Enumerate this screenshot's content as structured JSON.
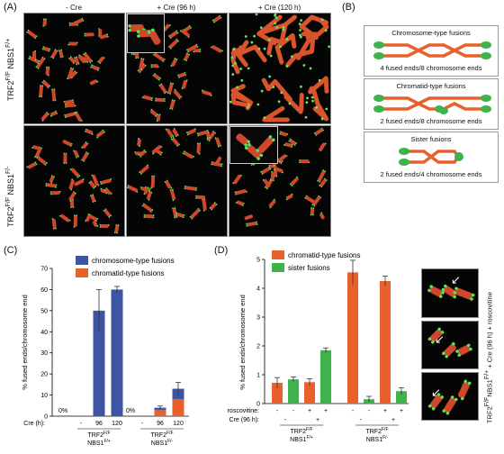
{
  "panel_labels": {
    "A": "(A)",
    "B": "(B)",
    "C": "(C)",
    "D": "(D)"
  },
  "panel_a": {
    "columns": [
      "- Cre",
      "+ Cre (96 h)",
      "+ Cre (120  h)"
    ],
    "rows": [
      "TRF2F/F NBS1F/+",
      "TRF2F/F NBS1F/-"
    ]
  },
  "panel_b": {
    "boxes": [
      {
        "title": "Chromosome-type fusions",
        "caption": "4 fused ends/8 chromosome ends"
      },
      {
        "title": "Chromatid-type fusions",
        "caption": "2 fused ends/8 chromosome ends"
      },
      {
        "title": "Sister fusions",
        "caption": "2 fused ends/4 chromosome ends"
      }
    ]
  },
  "panel_c": {
    "ylabel": "% fused ends/chromosome end",
    "yticks": [
      "0",
      "10",
      "20",
      "30",
      "40",
      "50",
      "60",
      "70"
    ],
    "cre_label": "Cre (h):",
    "cre_values": [
      "-",
      "96",
      "120",
      "-",
      "96",
      "120"
    ],
    "zero_labels": [
      "0%",
      "0%"
    ],
    "groups": [
      "TRF2F/F NBS1F/+",
      "TRF2F/F NBS1F/-"
    ],
    "group_lines": [
      [
        "TRF2",
        "F/F"
      ],
      [
        "NBS1",
        "F/+"
      ],
      [
        "TRF2",
        "F/F"
      ],
      [
        "NBS1",
        "F/-"
      ]
    ],
    "legend": [
      "chromosome-type fusions",
      "chromatid-type fusions"
    ],
    "colors": {
      "chromosome": "#3d55a3",
      "chromatid": "#e8612c"
    }
  },
  "panel_d": {
    "ylabel": "% fused ends/chromosome end",
    "yticks": [
      "0",
      "1",
      "2",
      "3",
      "4",
      "5"
    ],
    "roscovitine_label": "roscovitine:",
    "roscovitine_values": [
      "-",
      "-",
      "+",
      "+",
      "-",
      "-",
      "+",
      "+"
    ],
    "cre_label": "Cre (96 h):",
    "cre_values": [
      "-",
      "+",
      "-",
      "+"
    ],
    "group_lines": [
      [
        "TRF2",
        "F/F"
      ],
      [
        "NBS1",
        "F/+"
      ],
      [
        "TRF2",
        "F/F"
      ],
      [
        "NBS1",
        "F/-"
      ]
    ],
    "legend": [
      "chromatid-type fusions",
      "sister fusions"
    ],
    "colors": {
      "chromatid": "#e8612c",
      "sister": "#3fb34a"
    },
    "side_label": "TRF2F/FNBS1F/+ + Cre (96 h) + roscovitine"
  },
  "chart_data": [
    {
      "type": "bar",
      "stacked": true,
      "categories": [
        "-",
        "96",
        "120",
        "-",
        "96",
        "120"
      ],
      "groups": [
        "TRF2F/F NBS1F/+",
        "TRF2F/F NBS1F/-"
      ],
      "series": [
        {
          "name": "chromatid-type fusions",
          "values": [
            0,
            0,
            0,
            0,
            3,
            8
          ]
        },
        {
          "name": "chromosome-type fusions",
          "values": [
            0,
            50,
            60,
            0,
            1,
            5
          ]
        }
      ],
      "errors": [
        0,
        10,
        1.5,
        0,
        0.8,
        3
      ],
      "ylabel": "% fused ends/chromosome end",
      "ylim": [
        0,
        70
      ],
      "legend": "top-left"
    },
    {
      "type": "bar",
      "categories": [
        "-",
        "-",
        "+",
        "+",
        "-",
        "-",
        "+",
        "+"
      ],
      "groups": [
        "TRF2F/F NBS1F/+",
        "TRF2F/F NBS1F/-"
      ],
      "series": [
        {
          "name": "chromatid-type fusions",
          "values": [
            0.72,
            0,
            0.74,
            0,
            4.55,
            0,
            4.25,
            0
          ]
        },
        {
          "name": "sister fusions",
          "values": [
            0,
            0.84,
            0,
            1.85,
            0,
            0.15,
            0,
            0.43
          ]
        }
      ],
      "errors": [
        0.18,
        0.08,
        0.12,
        0.08,
        0.42,
        0.1,
        0.17,
        0.12
      ],
      "ylabel": "% fused ends/chromosome end",
      "ylim": [
        0,
        5
      ],
      "legend": "top-left"
    }
  ]
}
